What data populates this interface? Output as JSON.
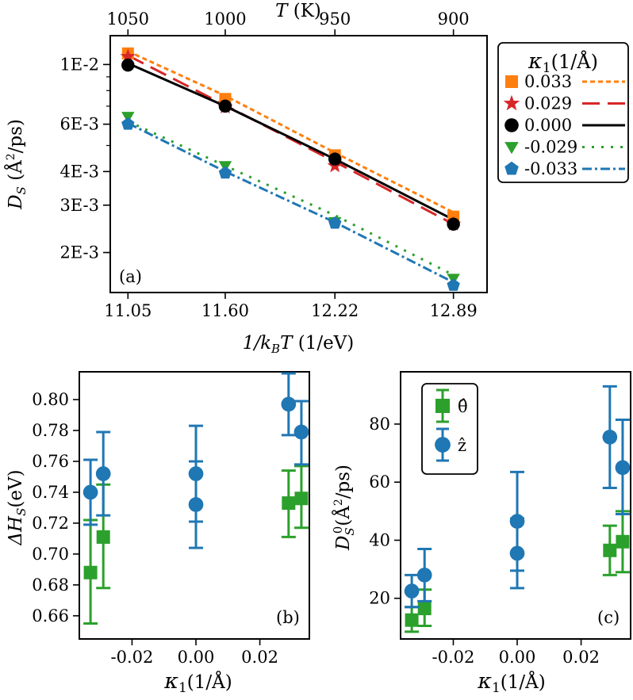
{
  "chart_data": [
    {
      "panel": "(a)",
      "type": "line",
      "scale": "log-y",
      "xlabel": "1/k_BT (1/eV)",
      "xlabel_parts": {
        "one": "1/",
        "k": "k",
        "sub": "B",
        "T": "T",
        "unit": " (1/eV)"
      },
      "ylabel": "D_S (Å²/ps)",
      "ylabel_parts": {
        "D": "D",
        "sub": "S",
        "unit": " (Å",
        "sup": "2",
        "tail": "/ps)"
      },
      "top_xlabel": "T (K)",
      "top_xlabel_parts": {
        "T": "T",
        "unit": " (K)"
      },
      "xlim": [
        10.95,
        13.08
      ],
      "ylim": [
        0.00142,
        0.0128
      ],
      "x": [
        11.05,
        11.6,
        12.22,
        12.89
      ],
      "x_ticks": [
        "11.05",
        "11.60",
        "12.22",
        "12.89"
      ],
      "top_ticks": [
        "1050",
        "1000",
        "950",
        "900"
      ],
      "y_ticks": [
        {
          "label": "1E-2",
          "value": 0.01
        },
        {
          "label": "6E-3",
          "value": 0.006
        },
        {
          "label": "4E-3",
          "value": 0.004
        },
        {
          "label": "3E-3",
          "value": 0.003
        },
        {
          "label": "2E-3",
          "value": 0.002
        }
      ],
      "legend_title": "κ₁(1/Å)",
      "legend_title_parts": {
        "kappa": "κ",
        "sub": "1",
        "unit": "(1/Å)"
      },
      "series": [
        {
          "name": "0.033",
          "color": "#ff7f0e",
          "marker": "square",
          "dash": "6,4",
          "values": [
            0.011,
            0.00745,
            0.0046,
            0.00272
          ],
          "fit": [
            0.0112,
            0.00765,
            0.0047,
            0.00282
          ]
        },
        {
          "name": "0.029",
          "color": "#d62728",
          "marker": "star",
          "dash": "22,10",
          "values": [
            0.0107,
            0.00695,
            0.0042,
            0.00255
          ],
          "fit": [
            0.0108,
            0.00705,
            0.00435,
            0.00255
          ]
        },
        {
          "name": "0.000",
          "color": "#000000",
          "marker": "circle",
          "dash": "",
          "values": [
            0.00995,
            0.007,
            0.00445,
            0.00255
          ],
          "fit": [
            0.0101,
            0.007,
            0.00445,
            0.00265
          ]
        },
        {
          "name": "-0.029",
          "color": "#2ca02c",
          "marker": "triangle",
          "dash": "3,9",
          "values": [
            0.0064,
            0.0042,
            0.0026,
            0.0016
          ],
          "fit": [
            0.00615,
            0.0042,
            0.00275,
            0.00165
          ]
        },
        {
          "name": "-0.033",
          "color": "#1f77b4",
          "marker": "pentagon",
          "dash": "12,4,3,4",
          "values": [
            0.006,
            0.00395,
            0.00257,
            0.00151
          ],
          "fit": [
            0.00605,
            0.004,
            0.00259,
            0.00155
          ]
        }
      ]
    },
    {
      "panel": "(b)",
      "type": "scatter",
      "xlabel": "κ1(1/Å)",
      "xlabel_parts": {
        "kappa": "κ",
        "sub": "1",
        "unit": "(1/Å)"
      },
      "ylabel": "ΔH_S(eV)",
      "ylabel_parts": {
        "delta": "ΔH",
        "sub": "S",
        "unit": "(eV)"
      },
      "xlim": [
        -0.0365,
        0.0355
      ],
      "ylim": [
        0.645,
        0.818
      ],
      "x_ticks": [
        {
          "label": "-0.02",
          "value": -0.02
        },
        {
          "label": "0.00",
          "value": 0.0
        },
        {
          "label": "0.02",
          "value": 0.02
        }
      ],
      "y_ticks": [
        0.66,
        0.68,
        0.7,
        0.72,
        0.74,
        0.76,
        0.78,
        0.8
      ],
      "y_tick_labels": [
        "0.66",
        "0.68",
        "0.70",
        "0.72",
        "0.74",
        "0.76",
        "0.78",
        "0.80"
      ],
      "series": [
        {
          "name": "θ̂",
          "color": "#2ca02c",
          "marker": "square",
          "points": [
            {
              "x": -0.033,
              "y": 0.688,
              "lo": 0.655,
              "hi": 0.722
            },
            {
              "x": -0.029,
              "y": 0.711,
              "lo": 0.678,
              "hi": 0.745
            },
            {
              "x": 0.029,
              "y": 0.733,
              "lo": 0.711,
              "hi": 0.754
            },
            {
              "x": 0.033,
              "y": 0.736,
              "lo": 0.717,
              "hi": 0.757
            }
          ]
        },
        {
          "name": "ẑ",
          "color": "#1f77b4",
          "marker": "circle",
          "points": [
            {
              "x": -0.033,
              "y": 0.74,
              "lo": 0.719,
              "hi": 0.761
            },
            {
              "x": -0.029,
              "y": 0.752,
              "lo": 0.725,
              "hi": 0.779
            },
            {
              "x": 0.0,
              "y": 0.732,
              "lo": 0.704,
              "hi": 0.76
            },
            {
              "x": 0.0,
              "y": 0.752,
              "lo": 0.721,
              "hi": 0.783
            },
            {
              "x": 0.029,
              "y": 0.797,
              "lo": 0.777,
              "hi": 0.817
            },
            {
              "x": 0.033,
              "y": 0.779,
              "lo": 0.758,
              "hi": 0.799
            }
          ]
        }
      ]
    },
    {
      "panel": "(c)",
      "type": "scatter",
      "xlabel": "κ1(1/Å)",
      "xlabel_parts": {
        "kappa": "κ",
        "sub": "1",
        "unit": "(1/Å)"
      },
      "ylabel": "D_S^0 (Å²/ps)",
      "ylabel_parts": {
        "D": "D",
        "sub": "S",
        "sup0": "0",
        "unit": "(Å",
        "sup": "2",
        "tail": "/ps)"
      },
      "xlim": [
        -0.0365,
        0.0355
      ],
      "ylim": [
        6,
        98
      ],
      "x_ticks": [
        {
          "label": "-0.02",
          "value": -0.02
        },
        {
          "label": "0.00",
          "value": 0.0
        },
        {
          "label": "0.02",
          "value": 0.02
        }
      ],
      "y_ticks": [
        20,
        40,
        60,
        80
      ],
      "y_tick_labels": [
        "20",
        "40",
        "60",
        "80"
      ],
      "legend": [
        {
          "label": "θ̂",
          "color": "#2ca02c",
          "marker": "square"
        },
        {
          "label": "ẑ",
          "color": "#1f77b4",
          "marker": "circle"
        }
      ],
      "series": [
        {
          "name": "θ̂",
          "color": "#2ca02c",
          "marker": "square",
          "points": [
            {
              "x": -0.033,
              "y": 12.5,
              "lo": 8.5,
              "hi": 17.0
            },
            {
              "x": -0.029,
              "y": 16.5,
              "lo": 10.5,
              "hi": 23.0
            },
            {
              "x": 0.029,
              "y": 36.5,
              "lo": 28.0,
              "hi": 45.0
            },
            {
              "x": 0.033,
              "y": 39.5,
              "lo": 29.0,
              "hi": 50.0
            }
          ]
        },
        {
          "name": "ẑ",
          "color": "#1f77b4",
          "marker": "circle",
          "points": [
            {
              "x": -0.033,
              "y": 22.5,
              "lo": 17.0,
              "hi": 28.0
            },
            {
              "x": -0.029,
              "y": 28.0,
              "lo": 19.0,
              "hi": 37.0
            },
            {
              "x": 0.0,
              "y": 35.5,
              "lo": 23.5,
              "hi": 47.5
            },
            {
              "x": 0.0,
              "y": 46.5,
              "lo": 29.5,
              "hi": 63.5
            },
            {
              "x": 0.029,
              "y": 75.5,
              "lo": 58.0,
              "hi": 93.0
            },
            {
              "x": 0.033,
              "y": 65.0,
              "lo": 49.0,
              "hi": 81.5
            }
          ]
        }
      ]
    }
  ]
}
